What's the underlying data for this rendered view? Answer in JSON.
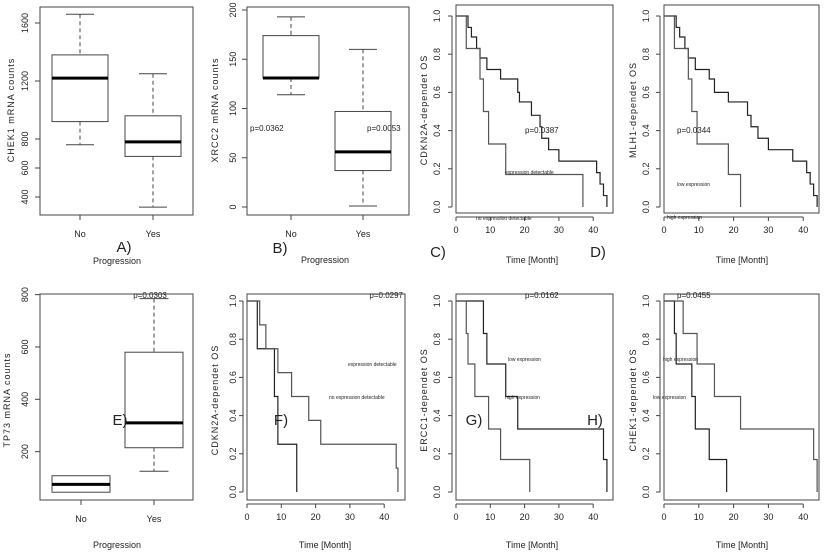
{
  "chart_data": [
    {
      "type": "box",
      "panel_label": "A)",
      "ylabel": "CHEK1 mRNA counts",
      "xlabel": "Progression",
      "categories": [
        "No",
        "Yes"
      ],
      "yticks": [
        400,
        600,
        800,
        1200,
        1600
      ],
      "boxes": [
        {
          "min": 760,
          "q1": 920,
          "median": 1220,
          "q3": 1380,
          "max": 1660
        },
        {
          "min": 330,
          "q1": 680,
          "median": 780,
          "q3": 960,
          "max": 1250
        }
      ],
      "annotations": []
    },
    {
      "type": "box",
      "panel_label": "B)",
      "ylabel": "XRCC2 mRNA counts",
      "xlabel": "Progression",
      "categories": [
        "No",
        "Yes"
      ],
      "yticks": [
        0,
        50,
        100,
        150,
        200
      ],
      "boxes": [
        {
          "min": 114,
          "q1": 131,
          "median": 131,
          "q3": 174,
          "max": 193
        },
        {
          "min": 1,
          "q1": 37,
          "median": 56,
          "q3": 97,
          "max": 160
        }
      ],
      "annotations": [
        "p=0.0362",
        "p=0.0053"
      ]
    },
    {
      "type": "line",
      "step": true,
      "panel_label": "C)",
      "ylabel": "CDKN2A-dependet OS",
      "xlabel": "Time [Month]",
      "xticks": [
        0,
        10,
        20,
        30,
        40
      ],
      "yticks": [
        0.0,
        0.2,
        0.4,
        0.6,
        0.8,
        1.0
      ],
      "series": [
        {
          "x": [
            0,
            3.5,
            4.5,
            6,
            7,
            9,
            13,
            18,
            18.5,
            22,
            24.5,
            25,
            27,
            30,
            41,
            42,
            43,
            44
          ],
          "y": [
            1.0,
            0.94,
            0.89,
            0.83,
            0.78,
            0.72,
            0.67,
            0.6,
            0.55,
            0.48,
            0.42,
            0.36,
            0.3,
            0.24,
            0.18,
            0.12,
            0.06,
            0.0
          ]
        },
        {
          "x": [
            0,
            3,
            7,
            8,
            9.5,
            14.5,
            37
          ],
          "y": [
            1.0,
            0.83,
            0.67,
            0.5,
            0.33,
            0.17,
            0.0
          ]
        }
      ],
      "annotations": [
        "p=0.0387",
        "expression detectable",
        "no expression detectable"
      ]
    },
    {
      "type": "line",
      "step": true,
      "panel_label": "D)",
      "ylabel": "MLH1-dependet OS",
      "xlabel": "Time [Month]",
      "xticks": [
        0,
        10,
        20,
        30,
        40
      ],
      "yticks": [
        0.0,
        0.2,
        0.4,
        0.6,
        0.8,
        1.0
      ],
      "series": [
        {
          "x": [
            0,
            3.5,
            4.5,
            6,
            7,
            9,
            13,
            14.5,
            18.5,
            24,
            25,
            27,
            30,
            37,
            41,
            42,
            43,
            44
          ],
          "y": [
            1.0,
            0.94,
            0.89,
            0.83,
            0.78,
            0.72,
            0.67,
            0.6,
            0.55,
            0.48,
            0.42,
            0.36,
            0.3,
            0.24,
            0.18,
            0.12,
            0.06,
            0.0
          ]
        },
        {
          "x": [
            0,
            3,
            7,
            8,
            9.5,
            18.5,
            22
          ],
          "y": [
            1.0,
            0.83,
            0.67,
            0.5,
            0.33,
            0.17,
            0.0
          ]
        }
      ],
      "annotations": [
        "p=0.0344",
        "low expression",
        "high expression"
      ]
    },
    {
      "type": "box",
      "panel_label": "E)",
      "ylabel": "TP73 mRNA counts",
      "xlabel": "Progression",
      "categories": [
        "No",
        "Yes"
      ],
      "yticks": [
        200,
        400,
        600,
        800
      ],
      "boxes": [
        {
          "min": 45,
          "q1": 45,
          "median": 75,
          "q3": 108,
          "max": 108
        },
        {
          "min": 125,
          "q1": 215,
          "median": 310,
          "q3": 580,
          "max": 785
        }
      ],
      "annotations": [
        "p=0.0303"
      ]
    },
    {
      "type": "line",
      "step": true,
      "panel_label": "F)",
      "ylabel": "CDKN2A-dependet OS",
      "xlabel": "Time [Month]",
      "xticks": [
        0,
        10,
        20,
        30,
        40
      ],
      "yticks": [
        0.0,
        0.2,
        0.4,
        0.6,
        0.8,
        1.0
      ],
      "series": [
        {
          "x": [
            0,
            3,
            8,
            9,
            14.5
          ],
          "y": [
            1.0,
            0.75,
            0.5,
            0.25,
            0.0
          ]
        },
        {
          "x": [
            0,
            3.7,
            5.5,
            9,
            13,
            18,
            21.5,
            43.5,
            44
          ],
          "y": [
            1.0,
            0.875,
            0.75,
            0.625,
            0.5,
            0.375,
            0.25,
            0.125,
            0.0
          ]
        }
      ],
      "annotations": [
        "p=0.0297",
        "expression detectable",
        "no expression detectable"
      ]
    },
    {
      "type": "line",
      "step": true,
      "panel_label": "G)",
      "ylabel": "ERCC1-dependet OS",
      "xlabel": "Time [Month]",
      "xticks": [
        0,
        10,
        20,
        30,
        40
      ],
      "yticks": [
        0.0,
        0.2,
        0.4,
        0.6,
        0.8,
        1.0
      ],
      "series": [
        {
          "x": [
            0,
            8,
            9,
            14.5,
            18,
            43,
            44
          ],
          "y": [
            1.0,
            0.83,
            0.67,
            0.5,
            0.33,
            0.17,
            0.0
          ]
        },
        {
          "x": [
            0,
            3,
            3.5,
            5.5,
            9.5,
            13,
            21.5
          ],
          "y": [
            1.0,
            0.83,
            0.67,
            0.5,
            0.33,
            0.17,
            0.0
          ]
        }
      ],
      "annotations": [
        "p=0.0162",
        "low expression",
        "high expression"
      ]
    },
    {
      "type": "line",
      "step": true,
      "panel_label": "H)",
      "ylabel": "CHEK1-dependet OS",
      "xlabel": "Time [Month]",
      "xticks": [
        0,
        10,
        20,
        30,
        40
      ],
      "yticks": [
        0.0,
        0.2,
        0.4,
        0.6,
        0.8,
        1.0
      ],
      "series": [
        {
          "x": [
            0,
            3,
            3.5,
            8,
            9,
            13,
            18
          ],
          "y": [
            1.0,
            0.83,
            0.67,
            0.5,
            0.33,
            0.17,
            0.0
          ]
        },
        {
          "x": [
            0,
            5.5,
            9.5,
            14.5,
            22,
            43,
            44
          ],
          "y": [
            1.0,
            0.83,
            0.67,
            0.5,
            0.33,
            0.17,
            0.0
          ]
        }
      ],
      "annotations": [
        "p=0.0455",
        "high expression",
        "low expression"
      ]
    }
  ]
}
